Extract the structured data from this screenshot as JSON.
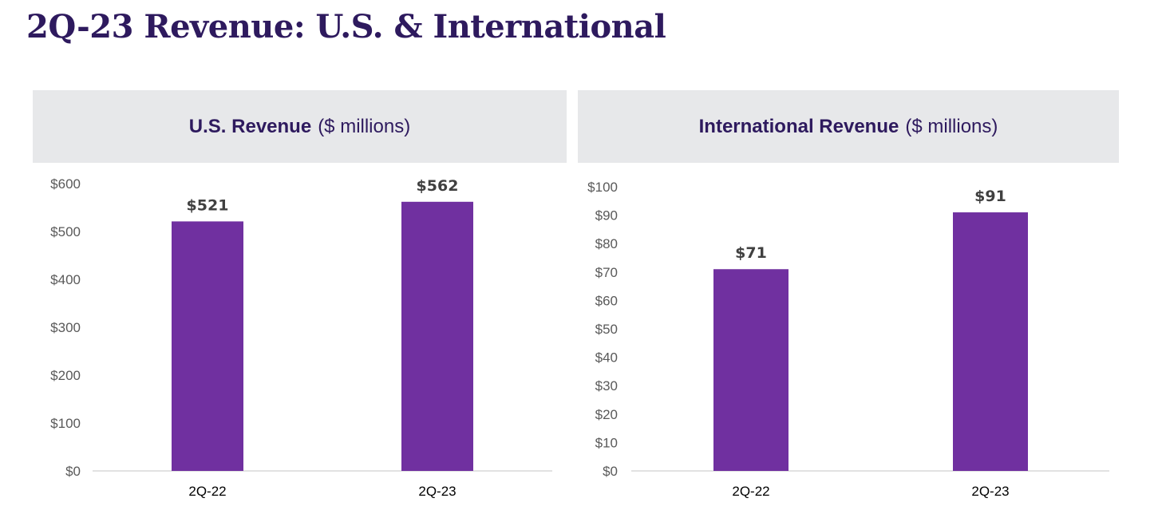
{
  "page": {
    "title": "2Q-23 Revenue: U.S. & International"
  },
  "colors": {
    "bar": "#7030a0",
    "title": "#2e1a5e",
    "header_bg": "#e7e8ea",
    "axis_line": "#d9d9d9"
  },
  "chart_data": [
    {
      "type": "bar",
      "title": "U.S. Revenue",
      "unit": "($ millions)",
      "categories": [
        "2Q-22",
        "2Q-23"
      ],
      "values": [
        521,
        562
      ],
      "value_labels": [
        "$521",
        "$562"
      ],
      "ylim": [
        0,
        600
      ],
      "yticks": [
        0,
        100,
        200,
        300,
        400,
        500,
        600
      ],
      "ytick_labels": [
        "$0",
        "$100",
        "$200",
        "$300",
        "$400",
        "$500",
        "$600"
      ],
      "grid": false,
      "legend": "none"
    },
    {
      "type": "bar",
      "title": "International Revenue",
      "unit": "($ millions)",
      "categories": [
        "2Q-22",
        "2Q-23"
      ],
      "values": [
        71,
        91
      ],
      "value_labels": [
        "$71",
        "$91"
      ],
      "ylim": [
        0,
        100
      ],
      "yticks": [
        0,
        10,
        20,
        30,
        40,
        50,
        60,
        70,
        80,
        90,
        100
      ],
      "ytick_labels": [
        "$0",
        "$10",
        "$20",
        "$30",
        "$40",
        "$50",
        "$60",
        "$70",
        "$80",
        "$90",
        "$100"
      ],
      "grid": false,
      "legend": "none"
    }
  ]
}
